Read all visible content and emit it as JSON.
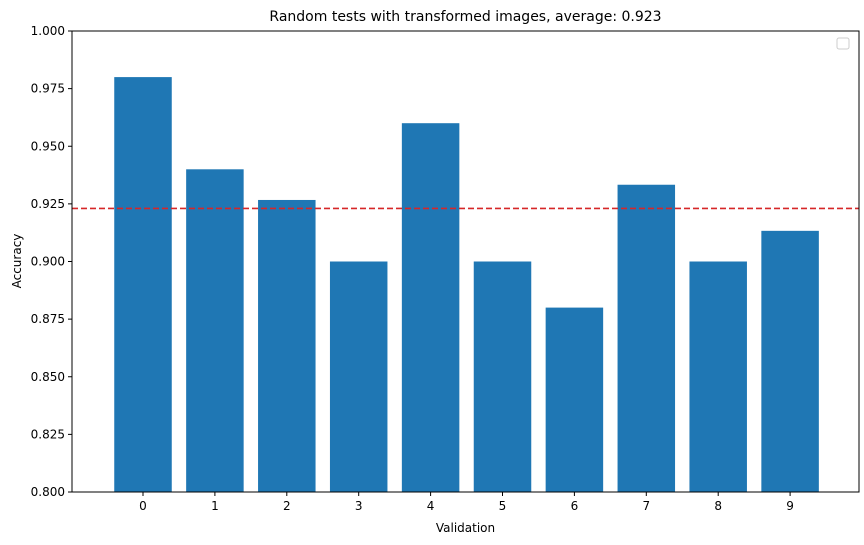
{
  "chart_data": {
    "type": "bar",
    "title": "Random tests with transformed images, average: 0.923",
    "xlabel": "Validation",
    "ylabel": "Accuracy",
    "categories": [
      "0",
      "1",
      "2",
      "3",
      "4",
      "5",
      "6",
      "7",
      "8",
      "9"
    ],
    "values": [
      0.98,
      0.94,
      0.9267,
      0.9,
      0.96,
      0.9,
      0.88,
      0.9333,
      0.9,
      0.9133
    ],
    "ylim": [
      0.8,
      1.0
    ],
    "yticks": [
      "0.800",
      "0.825",
      "0.850",
      "0.875",
      "0.900",
      "0.925",
      "0.950",
      "0.975",
      "1.000"
    ],
    "average_line": 0.923,
    "bar_color": "#1f77b4",
    "average_line_color": "#d62728",
    "grid": false,
    "legend": {
      "placement": "top-right",
      "entries": []
    }
  }
}
